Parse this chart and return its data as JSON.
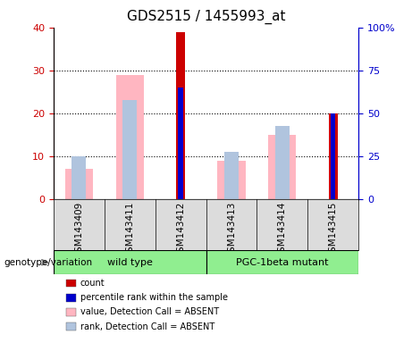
{
  "title": "GDS2515 / 1455993_at",
  "samples": [
    "GSM143409",
    "GSM143411",
    "GSM143412",
    "GSM143413",
    "GSM143414",
    "GSM143415"
  ],
  "count_values": [
    0,
    0,
    39,
    0,
    0,
    20
  ],
  "percentile_values": [
    0,
    0,
    26,
    0,
    0,
    20
  ],
  "absent_value_values": [
    7,
    29,
    0,
    9,
    15,
    0
  ],
  "absent_rank_values": [
    10,
    23,
    0,
    11,
    17,
    0
  ],
  "count_color": "#CC0000",
  "percentile_color": "#0000CC",
  "absent_value_color": "#FFB6C1",
  "absent_rank_color": "#B0C4DE",
  "ylim_left": [
    0,
    40
  ],
  "ylim_right": [
    0,
    100
  ],
  "yticks_left": [
    0,
    10,
    20,
    30,
    40
  ],
  "yticks_right": [
    0,
    25,
    50,
    75,
    100
  ],
  "ytick_labels_left": [
    "0",
    "10",
    "20",
    "30",
    "40"
  ],
  "ytick_labels_right": [
    "0",
    "25",
    "50",
    "75",
    "100%"
  ],
  "left_axis_color": "#CC0000",
  "right_axis_color": "#0000CC",
  "bg_label_area": "#DCDCDC",
  "group_wt_color": "#90EE90",
  "group_pgc_color": "#90EE90",
  "group_label": "genotype/variation",
  "groups": [
    {
      "name": "wild type",
      "start": 0,
      "end": 3
    },
    {
      "name": "PGC-1beta mutant",
      "start": 3,
      "end": 6
    }
  ],
  "legend_items": [
    {
      "color": "#CC0000",
      "label": "count"
    },
    {
      "color": "#0000CC",
      "label": "percentile rank within the sample"
    },
    {
      "color": "#FFB6C1",
      "label": "value, Detection Call = ABSENT"
    },
    {
      "color": "#B0C4DE",
      "label": "rank, Detection Call = ABSENT"
    }
  ]
}
